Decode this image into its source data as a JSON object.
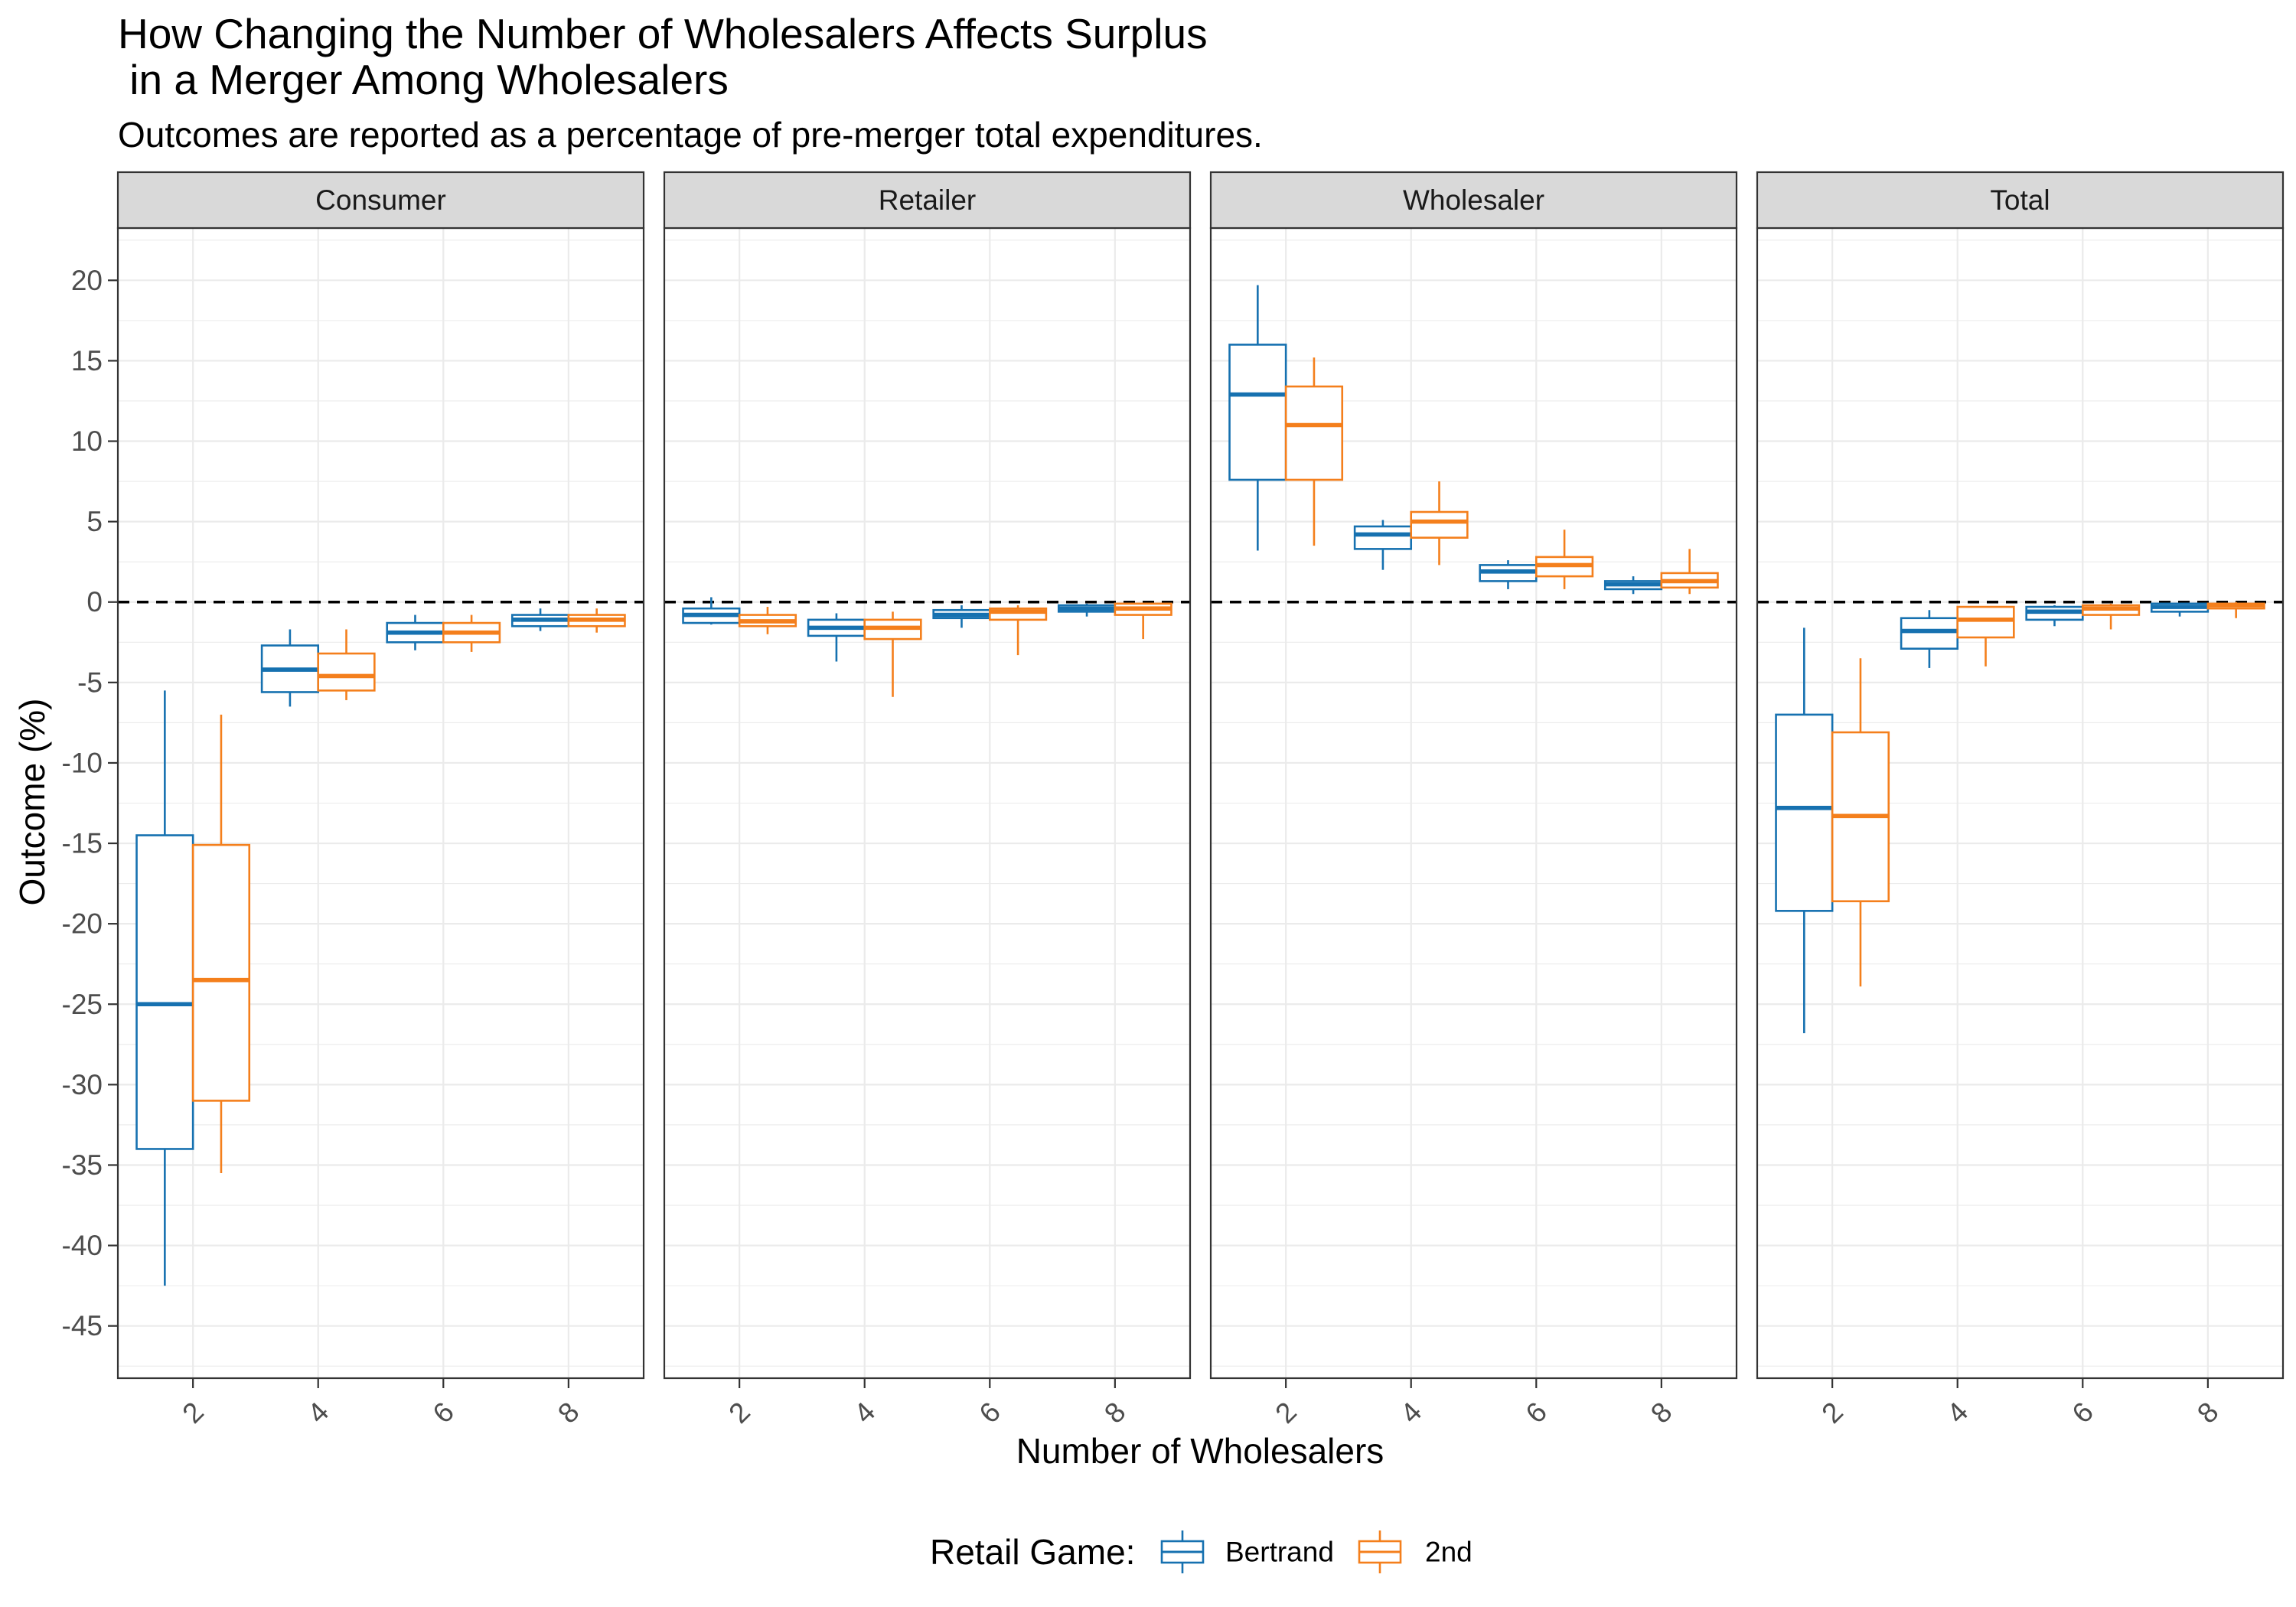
{
  "chart_data": {
    "type": "boxplot",
    "title": [
      "How Changing the Number of Wholesalers Affects Surplus",
      " in a Merger Among Wholesalers"
    ],
    "subtitle": "Outcomes are reported as a percentage of pre-merger total expenditures.",
    "xlabel": "Number of Wholesalers",
    "ylabel": "Outcome (%)",
    "ylim": [
      -48.25,
      23.25
    ],
    "yticks": [
      20,
      15,
      10,
      5,
      0,
      -5,
      -10,
      -15,
      -20,
      -25,
      -30,
      -35,
      -40,
      -45
    ],
    "categories": [
      "2",
      "4",
      "6",
      "8"
    ],
    "grid": true,
    "reference_line": {
      "y": 0,
      "linestyle": "dashed"
    },
    "legend": {
      "title": "Retail Game:",
      "position": "bottom"
    },
    "series": [
      {
        "name": "Bertrand",
        "color": "#1671b0"
      },
      {
        "name": "2nd",
        "color": "#f47f1c"
      }
    ],
    "facets": [
      {
        "label": "Consumer",
        "series": [
          {
            "name": "Bertrand",
            "boxes": [
              {
                "low": -42.5,
                "q1": -34.0,
                "median": -25.0,
                "q3": -14.5,
                "high": -5.5
              },
              {
                "low": -6.5,
                "q1": -5.6,
                "median": -4.2,
                "q3": -2.7,
                "high": -1.7
              },
              {
                "low": -3.0,
                "q1": -2.5,
                "median": -1.9,
                "q3": -1.3,
                "high": -0.8
              },
              {
                "low": -1.8,
                "q1": -1.5,
                "median": -1.1,
                "q3": -0.8,
                "high": -0.4
              }
            ]
          },
          {
            "name": "2nd",
            "boxes": [
              {
                "low": -35.5,
                "q1": -31.0,
                "median": -23.5,
                "q3": -15.1,
                "high": -7.0
              },
              {
                "low": -6.1,
                "q1": -5.5,
                "median": -4.6,
                "q3": -3.2,
                "high": -1.7
              },
              {
                "low": -3.1,
                "q1": -2.5,
                "median": -1.9,
                "q3": -1.3,
                "high": -0.8
              },
              {
                "low": -1.9,
                "q1": -1.5,
                "median": -1.1,
                "q3": -0.8,
                "high": -0.4
              }
            ]
          }
        ]
      },
      {
        "label": "Retailer",
        "series": [
          {
            "name": "Bertrand",
            "boxes": [
              {
                "low": -1.4,
                "q1": -1.3,
                "median": -0.8,
                "q3": -0.4,
                "high": 0.3
              },
              {
                "low": -3.7,
                "q1": -2.1,
                "median": -1.6,
                "q3": -1.1,
                "high": -0.7
              },
              {
                "low": -1.6,
                "q1": -1.0,
                "median": -0.8,
                "q3": -0.5,
                "high": -0.2
              },
              {
                "low": -0.9,
                "q1": -0.6,
                "median": -0.4,
                "q3": -0.2,
                "high": -0.1
              }
            ]
          },
          {
            "name": "2nd",
            "boxes": [
              {
                "low": -2.0,
                "q1": -1.5,
                "median": -1.2,
                "q3": -0.8,
                "high": -0.3
              },
              {
                "low": -5.9,
                "q1": -2.3,
                "median": -1.6,
                "q3": -1.1,
                "high": -0.6
              },
              {
                "low": -3.3,
                "q1": -1.1,
                "median": -0.6,
                "q3": -0.4,
                "high": -0.2
              },
              {
                "low": -2.3,
                "q1": -0.8,
                "median": -0.4,
                "q3": -0.1,
                "high": -0.1
              }
            ]
          }
        ]
      },
      {
        "label": "Wholesaler",
        "series": [
          {
            "name": "Bertrand",
            "boxes": [
              {
                "low": 3.2,
                "q1": 7.6,
                "median": 12.9,
                "q3": 16.0,
                "high": 19.7
              },
              {
                "low": 2.0,
                "q1": 3.3,
                "median": 4.2,
                "q3": 4.7,
                "high": 5.1
              },
              {
                "low": 0.8,
                "q1": 1.3,
                "median": 1.9,
                "q3": 2.3,
                "high": 2.6
              },
              {
                "low": 0.5,
                "q1": 0.8,
                "median": 1.1,
                "q3": 1.3,
                "high": 1.6
              }
            ]
          },
          {
            "name": "2nd",
            "boxes": [
              {
                "low": 3.5,
                "q1": 7.6,
                "median": 11.0,
                "q3": 13.4,
                "high": 15.2
              },
              {
                "low": 2.3,
                "q1": 4.0,
                "median": 5.0,
                "q3": 5.6,
                "high": 7.5
              },
              {
                "low": 0.8,
                "q1": 1.6,
                "median": 2.3,
                "q3": 2.8,
                "high": 4.5
              },
              {
                "low": 0.5,
                "q1": 0.9,
                "median": 1.3,
                "q3": 1.8,
                "high": 3.3
              }
            ]
          }
        ]
      },
      {
        "label": "Total",
        "series": [
          {
            "name": "Bertrand",
            "boxes": [
              {
                "low": -26.8,
                "q1": -19.2,
                "median": -12.8,
                "q3": -7.0,
                "high": -1.6
              },
              {
                "low": -4.1,
                "q1": -2.9,
                "median": -1.8,
                "q3": -1.0,
                "high": -0.5
              },
              {
                "low": -1.5,
                "q1": -1.1,
                "median": -0.6,
                "q3": -0.3,
                "high": -0.2
              },
              {
                "low": -0.9,
                "q1": -0.6,
                "median": -0.3,
                "q3": -0.1,
                "high": -0.1
              }
            ]
          },
          {
            "name": "2nd",
            "boxes": [
              {
                "low": -23.9,
                "q1": -18.6,
                "median": -13.3,
                "q3": -8.1,
                "high": -3.5
              },
              {
                "low": -4.0,
                "q1": -2.2,
                "median": -1.1,
                "q3": -0.3,
                "high": -0.3
              },
              {
                "low": -1.7,
                "q1": -0.8,
                "median": -0.4,
                "q3": -0.2,
                "high": -0.1
              },
              {
                "low": -1.0,
                "q1": -0.4,
                "median": -0.2,
                "q3": -0.1,
                "high": 0.0
              }
            ]
          }
        ]
      }
    ]
  }
}
